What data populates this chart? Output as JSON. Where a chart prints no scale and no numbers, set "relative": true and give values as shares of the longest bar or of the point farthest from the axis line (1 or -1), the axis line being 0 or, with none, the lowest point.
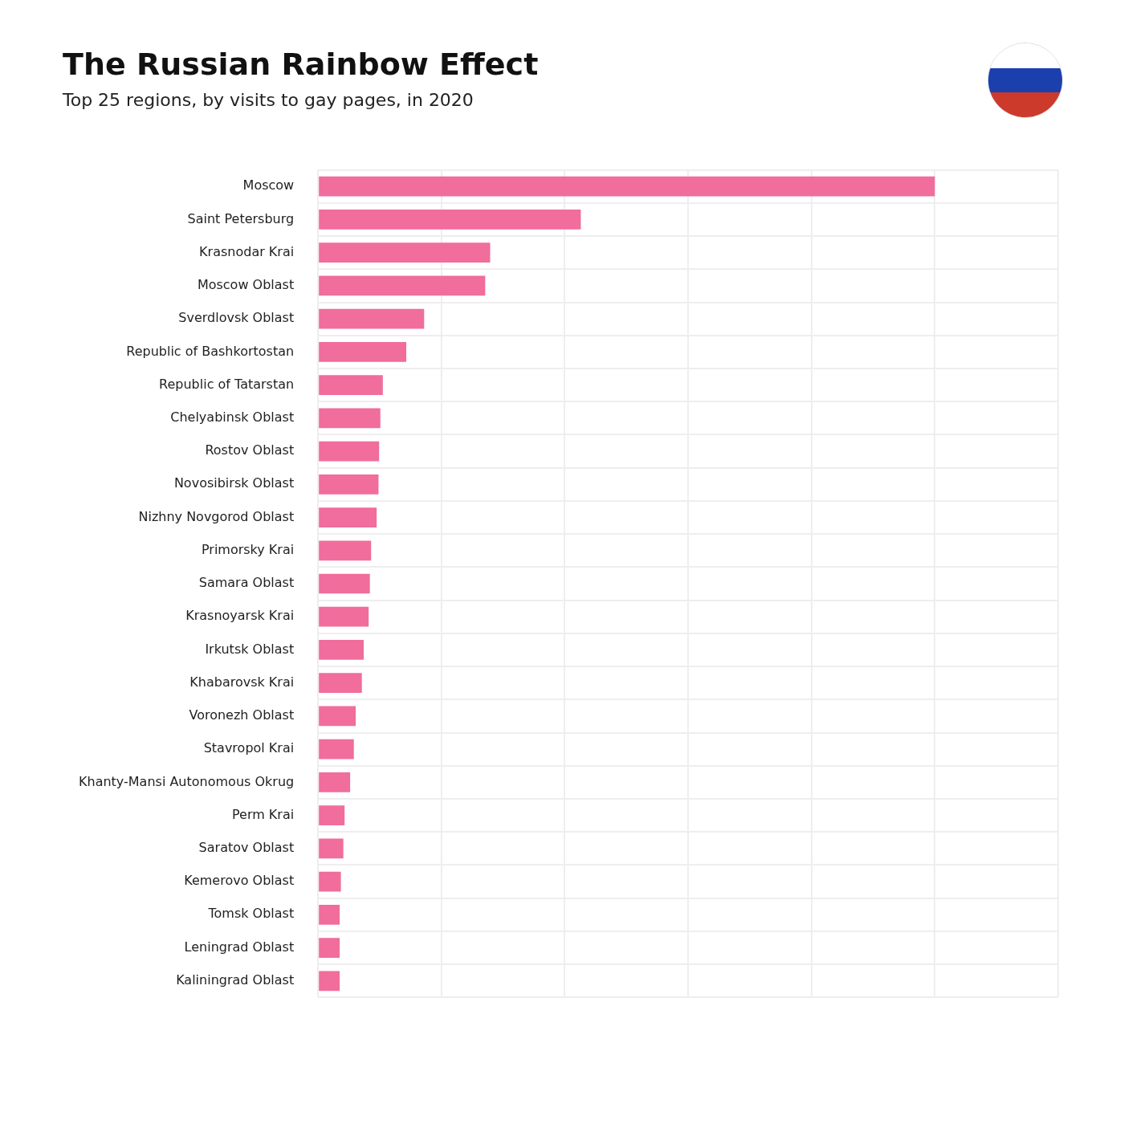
{
  "chart_data": {
    "type": "bar",
    "orientation": "horizontal",
    "relative": true,
    "grid": true,
    "title": "The Russian Rainbow Effect",
    "subtitle": "Top 25 regions, by visits to gay pages, in 2020",
    "categories": [
      "Moscow",
      "Saint Petersburg",
      "Krasnodar Krai",
      "Moscow Oblast",
      "Sverdlovsk Oblast",
      "Republic of Bashkortostan",
      "Republic of Tatarstan",
      "Chelyabinsk Oblast",
      "Rostov Oblast",
      "Novosibirsk Oblast",
      "Nizhny Novgorod Oblast",
      "Primorsky Krai",
      "Samara Oblast",
      "Krasnoyarsk Krai",
      "Irkutsk Oblast",
      "Khabarovsk Krai",
      "Voronezh Oblast",
      "Stavropol Krai",
      "Khanty-Mansi Autonomous Okrug",
      "Perm Krai",
      "Saratov Oblast",
      "Kemerovo Oblast",
      "Tomsk Oblast",
      "Leningrad Oblast",
      "Kaliningrad Oblast"
    ],
    "values": [
      1,
      0.426,
      0.279,
      0.271,
      0.172,
      0.143,
      0.105,
      0.101,
      0.099,
      0.098,
      0.095,
      0.086,
      0.084,
      0.082,
      0.074,
      0.071,
      0.061,
      0.058,
      0.052,
      0.043,
      0.041,
      0.037,
      0.035,
      0.035,
      0.035
    ],
    "color": "#f06d9c"
  }
}
